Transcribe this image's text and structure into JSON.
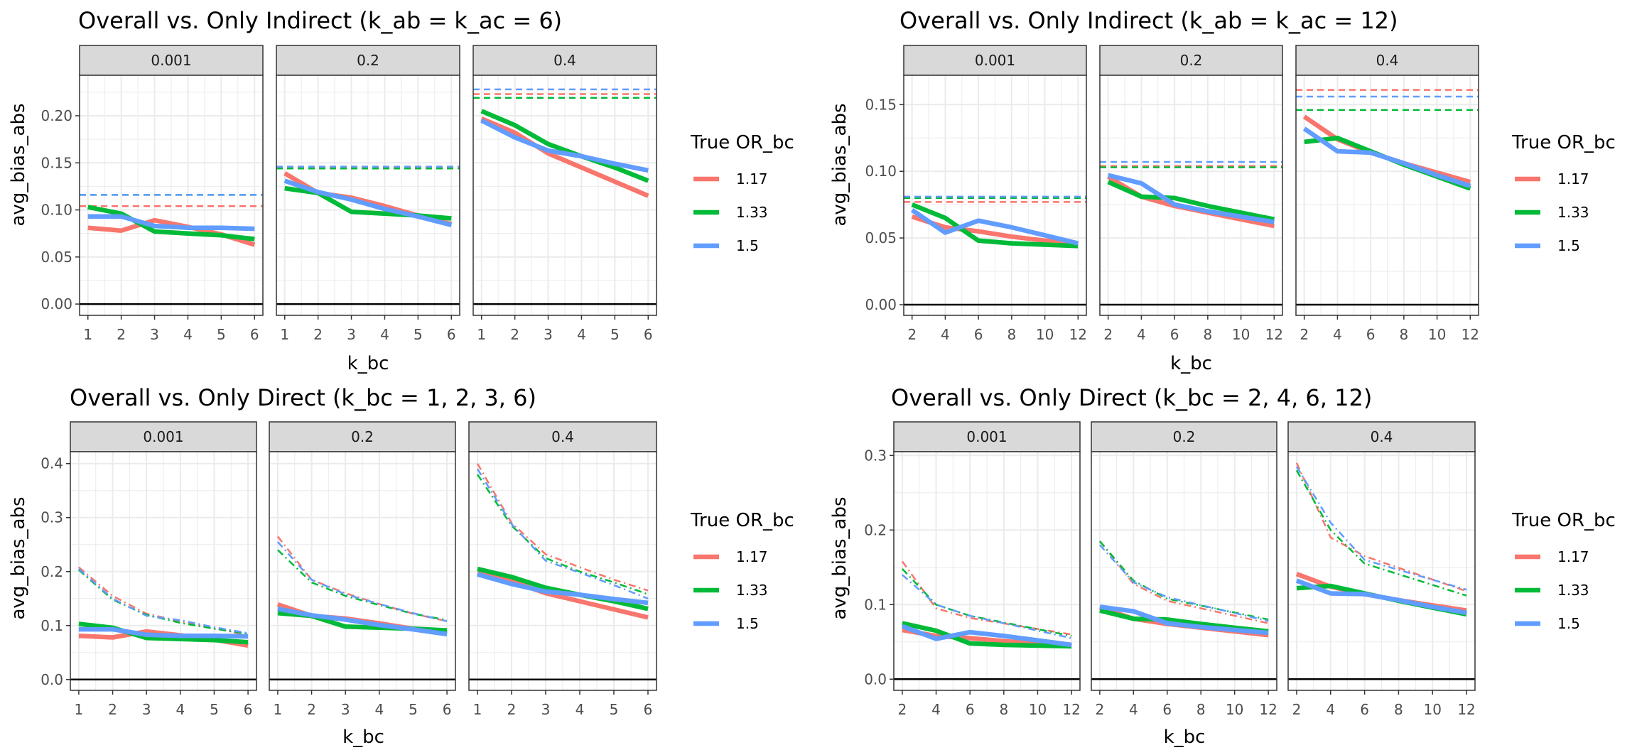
{
  "colors": {
    "1.17": "#F8766D",
    "1.33": "#00BA38",
    "1.5": "#619CFF",
    "strip_bg": "#D9D9D9",
    "grid": "#EBEBEB",
    "zero_line": "#000000"
  },
  "legend_title": "True OR_bc",
  "legend_items": [
    "1.17",
    "1.33",
    "1.5"
  ],
  "chart_data": [
    {
      "type": "line",
      "title": "Overall vs. Only Indirect (k_ab = k_ac = 6)",
      "xlabel": "k_bc",
      "ylabel": "avg_bias_abs",
      "facets": [
        "0.001",
        "0.2",
        "0.4"
      ],
      "x": [
        1,
        2,
        3,
        4,
        5,
        6
      ],
      "xticks": [
        1,
        2,
        3,
        4,
        5,
        6
      ],
      "xlim": [
        0.75,
        6.25
      ],
      "yticks": [
        0.0,
        0.05,
        0.1,
        0.15,
        0.2
      ],
      "ytick_labels": [
        "0.00",
        "0.05",
        "0.10",
        "0.15",
        "0.20"
      ],
      "ylim": [
        -0.012,
        0.243
      ],
      "legend": "right",
      "series": [
        {
          "name": "1.17",
          "values": {
            "0.001": [
              0.081,
              0.078,
              0.089,
              0.082,
              0.074,
              0.063
            ],
            "0.2": [
              0.139,
              0.118,
              0.113,
              0.104,
              0.094,
              0.085
            ],
            "0.4": [
              0.197,
              0.182,
              0.16,
              0.145,
              0.13,
              0.115
            ]
          },
          "reference": [
            0.104,
            0.145,
            0.223
          ]
        },
        {
          "name": "1.33",
          "values": {
            "0.001": [
              0.103,
              0.096,
              0.077,
              0.075,
              0.073,
              0.069
            ],
            "0.2": [
              0.123,
              0.118,
              0.098,
              0.096,
              0.094,
              0.091
            ],
            "0.4": [
              0.205,
              0.19,
              0.17,
              0.157,
              0.145,
              0.131
            ]
          },
          "reference": [
            0.116,
            0.144,
            0.219
          ]
        },
        {
          "name": "1.5",
          "values": {
            "0.001": [
              0.093,
              0.093,
              0.083,
              0.081,
              0.081,
              0.08
            ],
            "0.2": [
              0.131,
              0.119,
              0.111,
              0.101,
              0.093,
              0.084
            ],
            "0.4": [
              0.195,
              0.177,
              0.163,
              0.157,
              0.149,
              0.142
            ]
          },
          "reference": [
            0.116,
            0.146,
            0.228
          ]
        }
      ]
    },
    {
      "type": "line",
      "title": "Overall vs. Only Indirect (k_ab = k_ac = 12)",
      "xlabel": "k_bc",
      "ylabel": "avg_bias_abs",
      "facets": [
        "0.001",
        "0.2",
        "0.4"
      ],
      "x": [
        2,
        4,
        6,
        8,
        10,
        12
      ],
      "xticks": [
        2,
        4,
        6,
        8,
        10,
        12
      ],
      "xlim": [
        1.5,
        12.5
      ],
      "yticks": [
        0.0,
        0.05,
        0.1,
        0.15
      ],
      "ytick_labels": [
        "0.00",
        "0.05",
        "0.10",
        "0.15"
      ],
      "ylim": [
        -0.008,
        0.172
      ],
      "legend": "right",
      "series": [
        {
          "name": "1.17",
          "values": {
            "0.001": [
              0.066,
              0.058,
              0.055,
              0.051,
              0.048,
              0.046
            ],
            "0.2": [
              0.096,
              0.081,
              0.074,
              0.069,
              0.064,
              0.059
            ],
            "0.4": [
              0.141,
              0.124,
              0.114,
              0.106,
              0.099,
              0.092
            ]
          },
          "reference": [
            0.077,
            0.104,
            0.161
          ]
        },
        {
          "name": "1.33",
          "values": {
            "0.001": [
              0.075,
              0.065,
              0.048,
              0.046,
              0.045,
              0.044
            ],
            "0.2": [
              0.092,
              0.081,
              0.08,
              0.074,
              0.069,
              0.064
            ],
            "0.4": [
              0.122,
              0.125,
              0.115,
              0.105,
              0.096,
              0.087
            ]
          },
          "reference": [
            0.08,
            0.103,
            0.146
          ]
        },
        {
          "name": "1.5",
          "values": {
            "0.001": [
              0.071,
              0.054,
              0.063,
              0.058,
              0.052,
              0.046
            ],
            "0.2": [
              0.097,
              0.091,
              0.075,
              0.07,
              0.066,
              0.062
            ],
            "0.4": [
              0.132,
              0.115,
              0.114,
              0.106,
              0.097,
              0.089
            ]
          },
          "reference": [
            0.081,
            0.107,
            0.156
          ]
        }
      ]
    },
    {
      "type": "line",
      "title": "Overall vs. Only Direct (k_bc = 1, 2, 3, 6)",
      "xlabel": "k_bc",
      "ylabel": "avg_bias_abs",
      "facets": [
        "0.001",
        "0.2",
        "0.4"
      ],
      "x": [
        1,
        2,
        3,
        4,
        5,
        6
      ],
      "xticks": [
        1,
        2,
        3,
        4,
        5,
        6
      ],
      "xlim": [
        0.75,
        6.25
      ],
      "yticks": [
        0.0,
        0.1,
        0.2,
        0.3,
        0.4
      ],
      "ytick_labels": [
        "0.0",
        "0.1",
        "0.2",
        "0.3",
        "0.4"
      ],
      "ylim": [
        -0.02,
        0.422
      ],
      "legend": "right",
      "series": [
        {
          "name": "1.17",
          "values": {
            "0.001": [
              0.081,
              0.078,
              0.089,
              0.082,
              0.074,
              0.063
            ],
            "0.2": [
              0.139,
              0.118,
              0.113,
              0.104,
              0.094,
              0.085
            ],
            "0.4": [
              0.197,
              0.182,
              0.16,
              0.145,
              0.13,
              0.115
            ]
          },
          "reference_line": {
            "x": [
              1,
              2,
              3,
              4,
              5,
              6
            ],
            "0.001": [
              0.208,
              0.155,
              0.122,
              0.108,
              0.095,
              0.082
            ],
            "0.2": [
              0.265,
              0.185,
              0.16,
              0.14,
              0.122,
              0.108
            ],
            "0.4": [
              0.4,
              0.29,
              0.232,
              0.208,
              0.185,
              0.165
            ]
          }
        },
        {
          "name": "1.33",
          "values": {
            "0.001": [
              0.103,
              0.096,
              0.077,
              0.075,
              0.073,
              0.069
            ],
            "0.2": [
              0.123,
              0.118,
              0.098,
              0.096,
              0.094,
              0.091
            ],
            "0.4": [
              0.205,
              0.19,
              0.17,
              0.157,
              0.145,
              0.131
            ]
          },
          "reference_line": {
            "x": [
              1,
              2,
              3,
              4,
              5,
              6
            ],
            "0.001": [
              0.203,
              0.148,
              0.12,
              0.105,
              0.094,
              0.085
            ],
            "0.2": [
              0.24,
              0.18,
              0.155,
              0.138,
              0.122,
              0.11
            ],
            "0.4": [
              0.38,
              0.285,
              0.225,
              0.2,
              0.18,
              0.158
            ]
          }
        },
        {
          "name": "1.5",
          "values": {
            "0.001": [
              0.093,
              0.093,
              0.083,
              0.081,
              0.081,
              0.08
            ],
            "0.2": [
              0.131,
              0.119,
              0.111,
              0.101,
              0.093,
              0.084
            ],
            "0.4": [
              0.195,
              0.177,
              0.163,
              0.157,
              0.149,
              0.142
            ]
          },
          "reference_line": {
            "x": [
              1,
              2,
              3,
              4,
              5,
              6
            ],
            "0.001": [
              0.205,
              0.15,
              0.118,
              0.11,
              0.097,
              0.086
            ],
            "0.2": [
              0.255,
              0.185,
              0.158,
              0.14,
              0.123,
              0.108
            ],
            "0.4": [
              0.39,
              0.288,
              0.22,
              0.198,
              0.175,
              0.15
            ]
          }
        }
      ]
    },
    {
      "type": "line",
      "title": "Overall vs. Only Direct (k_bc = 2, 4, 6, 12)",
      "xlabel": "k_bc",
      "ylabel": "avg_bias_abs",
      "facets": [
        "0.001",
        "0.2",
        "0.4"
      ],
      "x": [
        2,
        4,
        6,
        8,
        10,
        12
      ],
      "xticks": [
        2,
        4,
        6,
        8,
        10,
        12
      ],
      "xlim": [
        1.5,
        12.5
      ],
      "yticks": [
        0.0,
        0.1,
        0.2,
        0.3
      ],
      "ytick_labels": [
        "0.0",
        "0.1",
        "0.2",
        "0.3"
      ],
      "ylim": [
        -0.015,
        0.305
      ],
      "legend": "right",
      "series": [
        {
          "name": "1.17",
          "values": {
            "0.001": [
              0.066,
              0.058,
              0.055,
              0.051,
              0.048,
              0.046
            ],
            "0.2": [
              0.096,
              0.081,
              0.074,
              0.069,
              0.064,
              0.059
            ],
            "0.4": [
              0.141,
              0.124,
              0.114,
              0.106,
              0.099,
              0.092
            ]
          },
          "reference_line": {
            "x": [
              2,
              4,
              6,
              12
            ],
            "0.001": [
              0.158,
              0.095,
              0.082,
              0.06
            ],
            "0.2": [
              0.185,
              0.128,
              0.105,
              0.075
            ],
            "0.4": [
              0.29,
              0.19,
              0.165,
              0.118
            ]
          }
        },
        {
          "name": "1.33",
          "values": {
            "0.001": [
              0.075,
              0.065,
              0.048,
              0.046,
              0.045,
              0.044
            ],
            "0.2": [
              0.092,
              0.081,
              0.08,
              0.074,
              0.069,
              0.064
            ],
            "0.4": [
              0.122,
              0.125,
              0.115,
              0.105,
              0.096,
              0.087
            ]
          },
          "reference_line": {
            "x": [
              2,
              4,
              6,
              12
            ],
            "0.001": [
              0.148,
              0.1,
              0.085,
              0.058
            ],
            "0.2": [
              0.185,
              0.132,
              0.108,
              0.08
            ],
            "0.4": [
              0.28,
              0.2,
              0.155,
              0.112
            ]
          }
        },
        {
          "name": "1.5",
          "values": {
            "0.001": [
              0.071,
              0.054,
              0.063,
              0.058,
              0.052,
              0.046
            ],
            "0.2": [
              0.097,
              0.091,
              0.075,
              0.07,
              0.066,
              0.062
            ],
            "0.4": [
              0.132,
              0.115,
              0.114,
              0.106,
              0.097,
              0.089
            ]
          },
          "reference_line": {
            "x": [
              2,
              4,
              6,
              12
            ],
            "0.001": [
              0.14,
              0.1,
              0.085,
              0.055
            ],
            "0.2": [
              0.18,
              0.13,
              0.11,
              0.078
            ],
            "0.4": [
              0.285,
              0.21,
              0.16,
              0.12
            ]
          }
        }
      ]
    }
  ]
}
